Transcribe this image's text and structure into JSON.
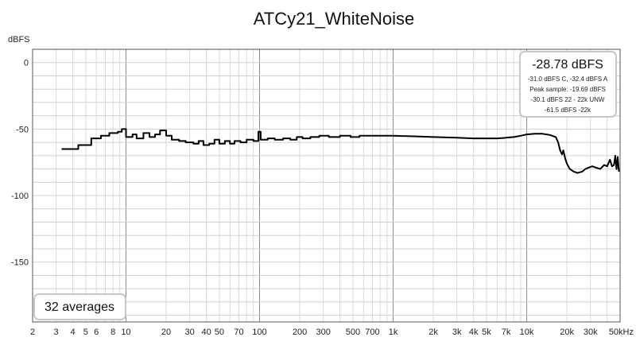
{
  "chart_data": {
    "type": "line",
    "title": "ATCy21_WhiteNoise",
    "ylabel": "dBFS",
    "xunit": "kHz",
    "xscale": "log",
    "xlim": [
      2,
      50000
    ],
    "ylim": [
      -195,
      10
    ],
    "grid": true,
    "y_ticks": [
      {
        "value": 0,
        "label": "0"
      },
      {
        "value": -50,
        "label": "-50"
      },
      {
        "value": -100,
        "label": "-100"
      },
      {
        "value": -150,
        "label": "-150"
      }
    ],
    "x_ticks": [
      {
        "value": 2,
        "label": "2"
      },
      {
        "value": 3,
        "label": "3"
      },
      {
        "value": 4,
        "label": "4"
      },
      {
        "value": 5,
        "label": "5"
      },
      {
        "value": 6,
        "label": "6"
      },
      {
        "value": 8,
        "label": "8"
      },
      {
        "value": 10,
        "label": "10"
      },
      {
        "value": 20,
        "label": "20"
      },
      {
        "value": 30,
        "label": "30"
      },
      {
        "value": 40,
        "label": "40"
      },
      {
        "value": 50,
        "label": "50"
      },
      {
        "value": 70,
        "label": "70"
      },
      {
        "value": 100,
        "label": "100"
      },
      {
        "value": 200,
        "label": "200"
      },
      {
        "value": 300,
        "label": "300"
      },
      {
        "value": 500,
        "label": "500"
      },
      {
        "value": 700,
        "label": "700"
      },
      {
        "value": 1000,
        "label": "1k"
      },
      {
        "value": 2000,
        "label": "2k"
      },
      {
        "value": 3000,
        "label": "3k"
      },
      {
        "value": 4000,
        "label": "4k"
      },
      {
        "value": 5000,
        "label": "5k"
      },
      {
        "value": 7000,
        "label": "7k"
      },
      {
        "value": 10000,
        "label": "10k"
      },
      {
        "value": 20000,
        "label": "20k"
      },
      {
        "value": 30000,
        "label": "30k"
      },
      {
        "value": 50000,
        "label": "50kHz"
      }
    ],
    "series": [
      {
        "color": "#000000",
        "points": [
          [
            3.3,
            -65
          ],
          [
            4.4,
            -65
          ],
          [
            4.4,
            -62
          ],
          [
            5.5,
            -62
          ],
          [
            5.5,
            -57
          ],
          [
            6.5,
            -57
          ],
          [
            6.5,
            -55
          ],
          [
            7.5,
            -55
          ],
          [
            7.5,
            -53
          ],
          [
            8.7,
            -53
          ],
          [
            8.7,
            -52
          ],
          [
            9.3,
            -52
          ],
          [
            9.3,
            -50
          ],
          [
            10,
            -50
          ],
          [
            10,
            -56
          ],
          [
            11.2,
            -56
          ],
          [
            11.2,
            -54
          ],
          [
            12,
            -54
          ],
          [
            12,
            -57
          ],
          [
            13.5,
            -57
          ],
          [
            13.5,
            -53
          ],
          [
            15,
            -53
          ],
          [
            15,
            -56
          ],
          [
            16.5,
            -56
          ],
          [
            16.5,
            -54
          ],
          [
            18,
            -54
          ],
          [
            18,
            -51
          ],
          [
            20,
            -51
          ],
          [
            20,
            -55
          ],
          [
            22,
            -55
          ],
          [
            22,
            -58
          ],
          [
            25,
            -58
          ],
          [
            25,
            -59
          ],
          [
            28,
            -59
          ],
          [
            28,
            -60
          ],
          [
            32,
            -60
          ],
          [
            32,
            -61
          ],
          [
            35,
            -61
          ],
          [
            35,
            -59
          ],
          [
            38,
            -59
          ],
          [
            38,
            -62
          ],
          [
            42,
            -62
          ],
          [
            42,
            -61
          ],
          [
            46,
            -61
          ],
          [
            46,
            -58
          ],
          [
            50,
            -58
          ],
          [
            50,
            -61
          ],
          [
            55,
            -61
          ],
          [
            55,
            -59
          ],
          [
            60,
            -59
          ],
          [
            60,
            -61
          ],
          [
            65,
            -61
          ],
          [
            65,
            -59
          ],
          [
            72,
            -59
          ],
          [
            72,
            -60
          ],
          [
            80,
            -60
          ],
          [
            80,
            -58
          ],
          [
            90,
            -58
          ],
          [
            90,
            -59
          ],
          [
            98,
            -59
          ],
          [
            98,
            -52
          ],
          [
            102,
            -52
          ],
          [
            102,
            -58
          ],
          [
            115,
            -58
          ],
          [
            115,
            -57
          ],
          [
            130,
            -57
          ],
          [
            130,
            -58
          ],
          [
            150,
            -58
          ],
          [
            150,
            -57
          ],
          [
            170,
            -57
          ],
          [
            170,
            -58
          ],
          [
            190,
            -58
          ],
          [
            190,
            -56
          ],
          [
            210,
            -56
          ],
          [
            210,
            -57
          ],
          [
            240,
            -57
          ],
          [
            240,
            -56
          ],
          [
            280,
            -56
          ],
          [
            280,
            -55
          ],
          [
            330,
            -55
          ],
          [
            330,
            -56
          ],
          [
            400,
            -56
          ],
          [
            400,
            -55
          ],
          [
            480,
            -55
          ],
          [
            480,
            -56
          ],
          [
            560,
            -56
          ],
          [
            560,
            -55
          ],
          [
            700,
            -55
          ],
          [
            1000,
            -55
          ],
          [
            1500,
            -55.5
          ],
          [
            2000,
            -56
          ],
          [
            3000,
            -56.5
          ],
          [
            4000,
            -57
          ],
          [
            5000,
            -57
          ],
          [
            6000,
            -57
          ],
          [
            7000,
            -56.5
          ],
          [
            8000,
            -56
          ],
          [
            9000,
            -55
          ],
          [
            10000,
            -54
          ],
          [
            11500,
            -53.5
          ],
          [
            13000,
            -53.5
          ],
          [
            15000,
            -54.5
          ],
          [
            16500,
            -56
          ],
          [
            17200,
            -60
          ],
          [
            17800,
            -66
          ],
          [
            18400,
            -69
          ],
          [
            18800,
            -66
          ],
          [
            19400,
            -72
          ],
          [
            20000,
            -76
          ],
          [
            21000,
            -80
          ],
          [
            22500,
            -82
          ],
          [
            24000,
            -83
          ],
          [
            26000,
            -82
          ],
          [
            27500,
            -80
          ],
          [
            29000,
            -79
          ],
          [
            31000,
            -78
          ],
          [
            33000,
            -79
          ],
          [
            35500,
            -80
          ],
          [
            38000,
            -77
          ],
          [
            40000,
            -78
          ],
          [
            42000,
            -73
          ],
          [
            43500,
            -78
          ],
          [
            45000,
            -77
          ],
          [
            46000,
            -70
          ],
          [
            47000,
            -80
          ],
          [
            48000,
            -71
          ],
          [
            49000,
            -82
          ]
        ]
      }
    ],
    "summary_box": {
      "level": "-28.78 dBFS",
      "lines": [
        "-31.0 dBFS C, -32.4 dBFS A",
        "Peak sample: -19.69 dBFS",
        "-30.1 dBFS 22 - 22k UNW",
        "-61.5 dBFS -22k"
      ]
    },
    "averages_label": "32 averages"
  }
}
